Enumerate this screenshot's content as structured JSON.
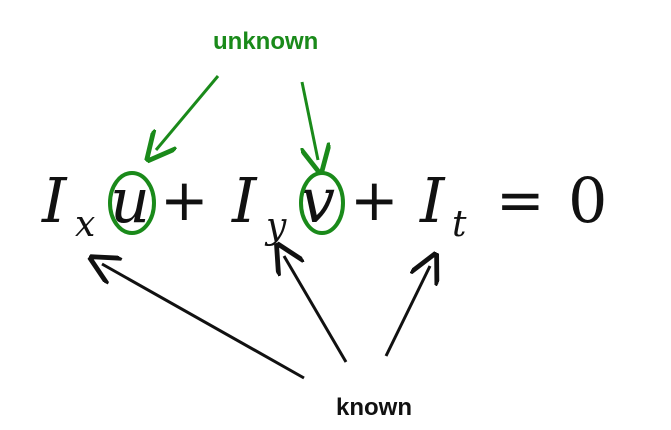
{
  "labels": {
    "unknown": "unknown",
    "known": "known"
  },
  "equation": {
    "terms": [
      {
        "symbol": "I",
        "subscript": "x",
        "variable": "u"
      },
      {
        "operator": "+"
      },
      {
        "symbol": "I",
        "subscript": "y",
        "variable": "v"
      },
      {
        "operator": "+"
      },
      {
        "symbol": "I",
        "subscript": "t"
      },
      {
        "operator": "="
      },
      {
        "value": "0"
      }
    ]
  },
  "colors": {
    "unknown": "#1a8a1a",
    "known": "#111111",
    "equation": "#111111"
  }
}
